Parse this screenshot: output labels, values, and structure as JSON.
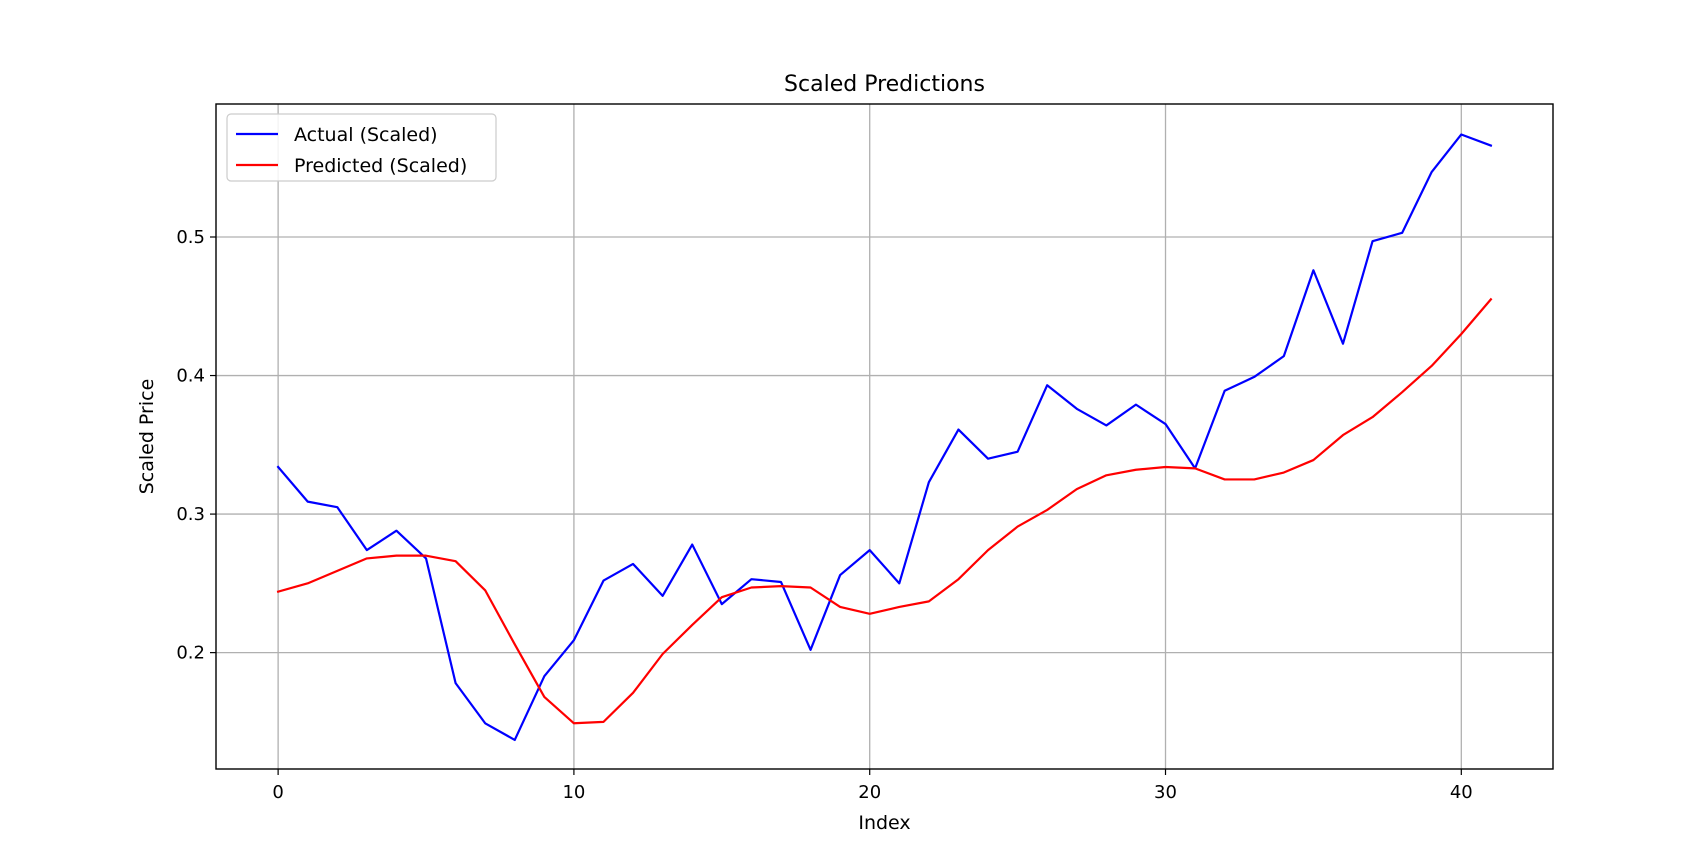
{
  "chart_data": {
    "type": "line",
    "title": "Scaled Predictions",
    "xlabel": "Index",
    "ylabel": "Scaled Price",
    "xlim": [
      -2.1,
      43.1
    ],
    "ylim": [
      0.116,
      0.596
    ],
    "xticks": [
      0,
      10,
      20,
      30,
      40
    ],
    "yticks": [
      0.2,
      0.3,
      0.4,
      0.5
    ],
    "grid": true,
    "legend_position": "upper-left",
    "x": [
      0,
      1,
      2,
      3,
      4,
      5,
      6,
      7,
      8,
      9,
      10,
      11,
      12,
      13,
      14,
      15,
      16,
      17,
      18,
      19,
      20,
      21,
      22,
      23,
      24,
      25,
      26,
      27,
      28,
      29,
      30,
      31,
      32,
      33,
      34,
      35,
      36,
      37,
      38,
      39,
      40,
      41
    ],
    "series": [
      {
        "name": "Actual (Scaled)",
        "color": "#0000ff",
        "values": [
          0.334,
          0.309,
          0.305,
          0.274,
          0.288,
          0.268,
          0.178,
          0.149,
          0.137,
          0.183,
          0.209,
          0.252,
          0.264,
          0.241,
          0.278,
          0.235,
          0.253,
          0.251,
          0.202,
          0.256,
          0.274,
          0.25,
          0.323,
          0.361,
          0.34,
          0.345,
          0.393,
          0.376,
          0.364,
          0.379,
          0.365,
          0.333,
          0.389,
          0.399,
          0.414,
          0.476,
          0.423,
          0.497,
          0.503,
          0.547,
          0.574,
          0.566
        ]
      },
      {
        "name": "Predicted (Scaled)",
        "color": "#ff0000",
        "values": [
          0.244,
          0.25,
          0.259,
          0.268,
          0.27,
          0.27,
          0.266,
          0.245,
          0.206,
          0.168,
          0.149,
          0.15,
          0.171,
          0.199,
          0.22,
          0.24,
          0.247,
          0.248,
          0.247,
          0.233,
          0.228,
          0.233,
          0.237,
          0.253,
          0.274,
          0.291,
          0.303,
          0.318,
          0.328,
          0.332,
          0.334,
          0.333,
          0.325,
          0.325,
          0.33,
          0.339,
          0.357,
          0.37,
          0.388,
          0.407,
          0.43,
          0.455
        ]
      }
    ]
  }
}
